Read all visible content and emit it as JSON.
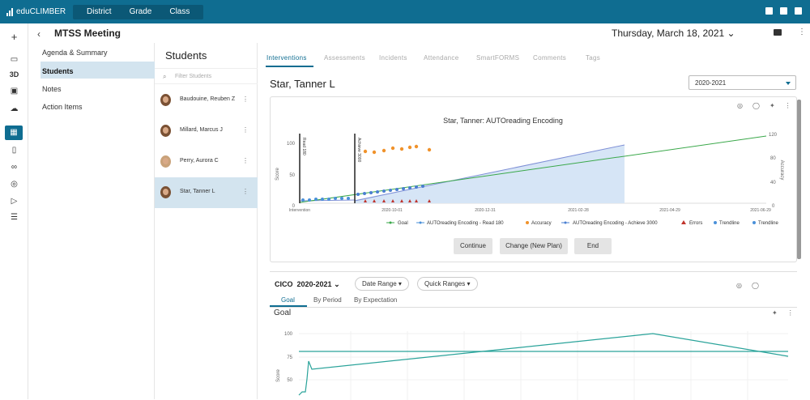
{
  "app": {
    "name": "eduCLIMBER"
  },
  "topnav": [
    "District",
    "Grade",
    "Class"
  ],
  "header": {
    "title": "MTSS Meeting",
    "date": "Thursday, March 18, 2021",
    "date_caret": "⌄"
  },
  "rail": {
    "plus": "+",
    "threed": "3D"
  },
  "left_menu": [
    "Agenda & Summary",
    "Students",
    "Notes",
    "Action Items"
  ],
  "students_panel": {
    "title": "Students",
    "filter_placeholder": "Filter Students",
    "students": [
      "Baudouine, Reuben Z",
      "Millard, Marcus J",
      "Perry, Aurora C",
      "Star, Tanner L"
    ]
  },
  "tabs": [
    "Interventions",
    "Assessments",
    "Incidents",
    "Attendance",
    "SmartFORMS",
    "Comments",
    "Tags"
  ],
  "student": {
    "name": "Star, Tanner L",
    "year": "2020-2021"
  },
  "chart1": {
    "title": "Star, Tanner: AUTOreading Encoding",
    "ylabel_left": "Score",
    "ylabel_right": "Accuracy",
    "y_left_ticks": [
      "100",
      "50",
      "0"
    ],
    "y_right_ticks": [
      "120",
      "80",
      "40",
      "0"
    ],
    "x_ticks": [
      "Intervention",
      "2020-10-01",
      "2020-12-31",
      "2021-02-28",
      "2021-04-29",
      "2021-06-29"
    ],
    "phase_labels": [
      "Read 180",
      "Achieve 3000"
    ],
    "legend": [
      "Goal",
      "AUTOreading Encoding - Read 180",
      "Accuracy",
      "AUTOreading Encoding - Achieve 3000",
      "Errors",
      "Trendline",
      "Trendline"
    ],
    "colors": {
      "goal": "#3aa84a",
      "read180": "#4a90d9",
      "accuracy": "#f0922b",
      "achieve": "#4a7fd1",
      "errors": "#c0332b",
      "trend": "#4a90d9"
    }
  },
  "buttons": [
    "Continue",
    "Change (New Plan)",
    "End"
  ],
  "cico": {
    "title": "CICO",
    "year": "2020-2021",
    "caret": "⌄",
    "date_range": "Date Range",
    "quick_ranges": "Quick Ranges",
    "subtabs": [
      "Goal",
      "By Period",
      "By Expectation"
    ],
    "chart_title": "Goal",
    "ylabel": "Score",
    "y_ticks": [
      "100",
      "75",
      "50",
      "25"
    ]
  }
}
